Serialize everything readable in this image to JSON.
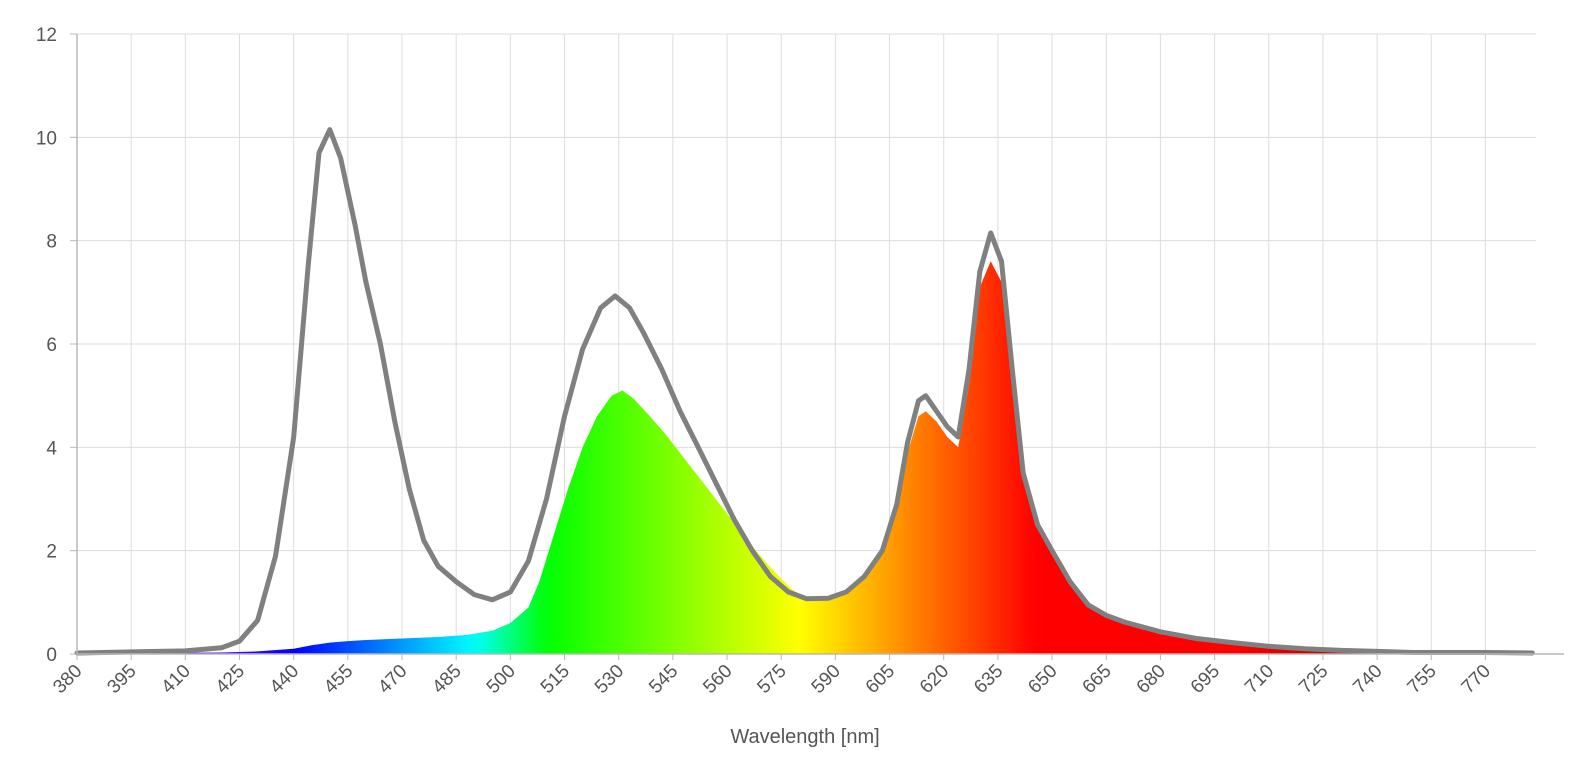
{
  "chart_data": {
    "type": "area",
    "title": "",
    "xlabel": "Wavelength [nm]",
    "ylabel": "",
    "xlim": [
      380,
      784
    ],
    "ylim": [
      0,
      12
    ],
    "grid": true,
    "x_ticks": [
      380,
      395,
      410,
      425,
      440,
      455,
      470,
      485,
      500,
      515,
      530,
      545,
      560,
      575,
      590,
      605,
      620,
      635,
      650,
      665,
      680,
      695,
      710,
      725,
      740,
      755,
      770
    ],
    "y_ticks": [
      0,
      2,
      4,
      6,
      8,
      10,
      12
    ],
    "series": [
      {
        "style": "line",
        "color": "#808080",
        "points": [
          [
            380,
            0.02
          ],
          [
            395,
            0.04
          ],
          [
            410,
            0.06
          ],
          [
            420,
            0.12
          ],
          [
            425,
            0.25
          ],
          [
            430,
            0.65
          ],
          [
            435,
            1.9
          ],
          [
            440,
            4.2
          ],
          [
            444,
            7.5
          ],
          [
            447,
            9.7
          ],
          [
            450,
            10.15
          ],
          [
            453,
            9.6
          ],
          [
            457,
            8.3
          ],
          [
            460,
            7.2
          ],
          [
            464,
            6.0
          ],
          [
            468,
            4.5
          ],
          [
            472,
            3.2
          ],
          [
            476,
            2.2
          ],
          [
            480,
            1.7
          ],
          [
            485,
            1.4
          ],
          [
            490,
            1.15
          ],
          [
            495,
            1.05
          ],
          [
            500,
            1.2
          ],
          [
            505,
            1.8
          ],
          [
            510,
            3.0
          ],
          [
            515,
            4.6
          ],
          [
            520,
            5.9
          ],
          [
            525,
            6.7
          ],
          [
            529,
            6.93
          ],
          [
            533,
            6.7
          ],
          [
            537,
            6.2
          ],
          [
            542,
            5.5
          ],
          [
            547,
            4.7
          ],
          [
            552,
            4.0
          ],
          [
            557,
            3.3
          ],
          [
            562,
            2.6
          ],
          [
            567,
            2.0
          ],
          [
            572,
            1.5
          ],
          [
            577,
            1.2
          ],
          [
            582,
            1.07
          ],
          [
            588,
            1.08
          ],
          [
            593,
            1.2
          ],
          [
            598,
            1.5
          ],
          [
            603,
            2.0
          ],
          [
            607,
            2.9
          ],
          [
            610,
            4.1
          ],
          [
            613,
            4.9
          ],
          [
            615,
            5.0
          ],
          [
            618,
            4.7
          ],
          [
            621,
            4.4
          ],
          [
            624,
            4.2
          ],
          [
            627,
            5.5
          ],
          [
            630,
            7.4
          ],
          [
            633,
            8.15
          ],
          [
            636,
            7.6
          ],
          [
            639,
            5.5
          ],
          [
            642,
            3.5
          ],
          [
            646,
            2.5
          ],
          [
            650,
            2.0
          ],
          [
            655,
            1.4
          ],
          [
            660,
            0.95
          ],
          [
            665,
            0.75
          ],
          [
            670,
            0.62
          ],
          [
            680,
            0.43
          ],
          [
            690,
            0.3
          ],
          [
            700,
            0.22
          ],
          [
            710,
            0.15
          ],
          [
            720,
            0.1
          ],
          [
            730,
            0.07
          ],
          [
            740,
            0.05
          ],
          [
            750,
            0.03
          ],
          [
            760,
            0.03
          ],
          [
            770,
            0.03
          ],
          [
            783,
            0.02
          ]
        ]
      },
      {
        "style": "spectrum-fill",
        "points": [
          [
            380,
            0.02
          ],
          [
            400,
            0.02
          ],
          [
            420,
            0.03
          ],
          [
            430,
            0.05
          ],
          [
            440,
            0.1
          ],
          [
            445,
            0.17
          ],
          [
            450,
            0.22
          ],
          [
            455,
            0.25
          ],
          [
            460,
            0.27
          ],
          [
            470,
            0.3
          ],
          [
            480,
            0.33
          ],
          [
            488,
            0.37
          ],
          [
            495,
            0.45
          ],
          [
            500,
            0.6
          ],
          [
            505,
            0.9
          ],
          [
            508,
            1.4
          ],
          [
            512,
            2.3
          ],
          [
            516,
            3.2
          ],
          [
            520,
            4.0
          ],
          [
            524,
            4.6
          ],
          [
            528,
            5.0
          ],
          [
            531,
            5.1
          ],
          [
            534,
            4.95
          ],
          [
            538,
            4.65
          ],
          [
            543,
            4.25
          ],
          [
            548,
            3.8
          ],
          [
            553,
            3.35
          ],
          [
            558,
            2.9
          ],
          [
            563,
            2.45
          ],
          [
            568,
            2.0
          ],
          [
            573,
            1.6
          ],
          [
            578,
            1.25
          ],
          [
            582,
            1.07
          ],
          [
            588,
            1.08
          ],
          [
            593,
            1.2
          ],
          [
            598,
            1.5
          ],
          [
            603,
            2.0
          ],
          [
            607,
            2.85
          ],
          [
            610,
            3.9
          ],
          [
            613,
            4.6
          ],
          [
            615,
            4.7
          ],
          [
            618,
            4.5
          ],
          [
            621,
            4.2
          ],
          [
            624,
            4.0
          ],
          [
            627,
            5.2
          ],
          [
            630,
            7.1
          ],
          [
            633,
            7.6
          ],
          [
            636,
            7.2
          ],
          [
            639,
            5.3
          ],
          [
            642,
            3.4
          ],
          [
            646,
            2.45
          ],
          [
            650,
            1.95
          ],
          [
            655,
            1.4
          ],
          [
            660,
            0.95
          ],
          [
            665,
            0.75
          ],
          [
            670,
            0.62
          ],
          [
            680,
            0.43
          ],
          [
            690,
            0.3
          ],
          [
            700,
            0.22
          ],
          [
            710,
            0.15
          ],
          [
            720,
            0.1
          ],
          [
            730,
            0.07
          ],
          [
            740,
            0.05
          ],
          [
            750,
            0.03
          ],
          [
            760,
            0.03
          ],
          [
            770,
            0.03
          ],
          [
            783,
            0.02
          ]
        ]
      }
    ]
  }
}
